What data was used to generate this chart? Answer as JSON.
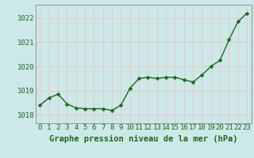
{
  "x": [
    0,
    1,
    2,
    3,
    4,
    5,
    6,
    7,
    8,
    9,
    10,
    11,
    12,
    13,
    14,
    15,
    16,
    17,
    18,
    19,
    20,
    21,
    22,
    23
  ],
  "y": [
    1018.4,
    1018.7,
    1018.85,
    1018.45,
    1018.28,
    1018.25,
    1018.25,
    1018.25,
    1018.18,
    1018.4,
    1019.1,
    1019.5,
    1019.55,
    1019.5,
    1019.55,
    1019.55,
    1019.45,
    1019.35,
    1019.65,
    1020.0,
    1020.25,
    1021.1,
    1021.85,
    1022.2
  ],
  "line_color": "#1a6b1a",
  "marker": "D",
  "marker_size": 2.5,
  "line_width": 1.0,
  "background_color": "#cce8e8",
  "grid_color_major": "#e8c8c8",
  "grid_color_minor": "#e8c8c8",
  "xlabel": "Graphe pression niveau de la mer (hPa)",
  "xlabel_fontsize": 7.5,
  "ylabel_ticks": [
    1018,
    1019,
    1020,
    1021,
    1022
  ],
  "xlim": [
    -0.5,
    23.5
  ],
  "ylim": [
    1017.65,
    1022.55
  ],
  "tick_color": "#1a6b1a",
  "tick_fontsize": 6.5,
  "xtick_labels": [
    "0",
    "1",
    "2",
    "3",
    "4",
    "5",
    "6",
    "7",
    "8",
    "9",
    "10",
    "11",
    "12",
    "13",
    "14",
    "15",
    "16",
    "17",
    "18",
    "19",
    "20",
    "21",
    "22",
    "23"
  ]
}
